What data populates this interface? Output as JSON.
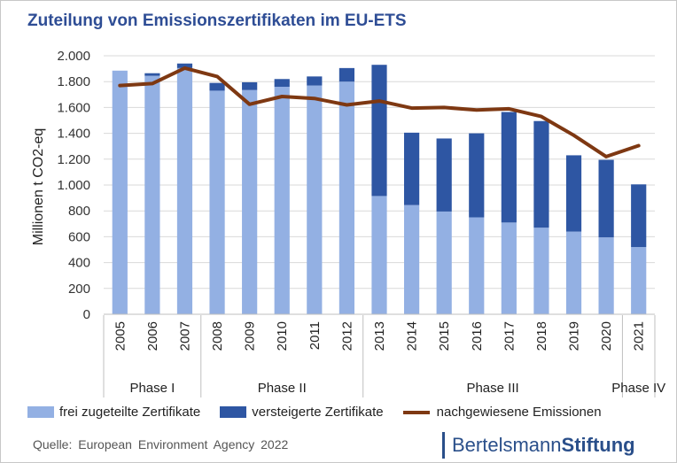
{
  "title": "Zuteilung von Emissionszertifikaten im EU-ETS",
  "legend": {
    "free": "frei zugeteilte Zertifikate",
    "auctioned": "versteigerte Zertifikate",
    "emissions": "nachgewiesene Emissionen"
  },
  "source": "Quelle: European Environment Agency 2022",
  "brand": {
    "part1": "Bertelsmann",
    "part2": "Stiftung"
  },
  "colors": {
    "free": "#93b0e3",
    "auctioned": "#2e56a3",
    "emissions": "#7e3812",
    "title": "#2e4d95"
  },
  "chart_data": {
    "type": "bar",
    "stacked": true,
    "title": "Zuteilung von Emissionszertifikaten im EU-ETS",
    "ylabel": "Millionen t CO2-eq",
    "xlabel": "",
    "ylim": [
      0,
      2000
    ],
    "yticks": [
      0,
      200,
      400,
      600,
      800,
      1000,
      1200,
      1400,
      1600,
      1800,
      2000
    ],
    "ytick_labels": [
      "0",
      "200",
      "400",
      "600",
      "800",
      "1.000",
      "1.200",
      "1.400",
      "1.600",
      "1.800",
      "2.000"
    ],
    "categories": [
      "2005",
      "2006",
      "2007",
      "2008",
      "2009",
      "2010",
      "2011",
      "2012",
      "2013",
      "2014",
      "2015",
      "2016",
      "2017",
      "2018",
      "2019",
      "2020",
      "2021"
    ],
    "series": [
      {
        "name": "frei zugeteilte Zertifikate",
        "kind": "bar",
        "values": [
          1885,
          1845,
          1905,
          1730,
          1735,
          1760,
          1770,
          1800,
          915,
          845,
          795,
          750,
          710,
          670,
          640,
          595,
          520
        ]
      },
      {
        "name": "versteigerte Zertifikate",
        "kind": "bar",
        "values": [
          0,
          20,
          35,
          60,
          60,
          60,
          70,
          105,
          1015,
          560,
          565,
          650,
          855,
          825,
          590,
          600,
          485
        ]
      },
      {
        "name": "nachgewiesene Emissionen",
        "kind": "line",
        "values": [
          1770,
          1785,
          1905,
          1840,
          1625,
          1685,
          1670,
          1620,
          1650,
          1595,
          1600,
          1580,
          1590,
          1530,
          1385,
          1220,
          1305
        ]
      }
    ],
    "phases": [
      {
        "label": "Phase I",
        "start": 0,
        "end": 2
      },
      {
        "label": "Phase II",
        "start": 3,
        "end": 7
      },
      {
        "label": "Phase III",
        "start": 8,
        "end": 15
      },
      {
        "label": "Phase IV",
        "start": 16,
        "end": 16
      }
    ],
    "grid": true,
    "legend_position": "bottom"
  }
}
